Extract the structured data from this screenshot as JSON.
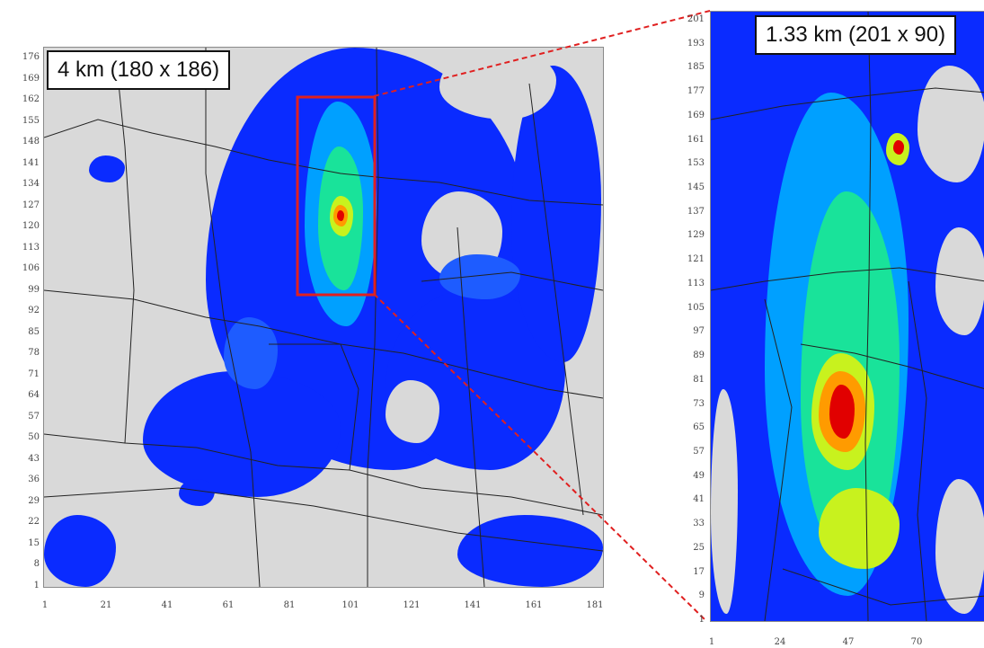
{
  "left_panel": {
    "label": "4 km (180 x 186)",
    "y_ticks": [
      "176",
      "169",
      "162",
      "155",
      "148",
      "141",
      "134",
      "127",
      "120",
      "113",
      "106",
      "99",
      "92",
      "85",
      "78",
      "71",
      "64",
      "57",
      "50",
      "43",
      "36",
      "29",
      "22",
      "15",
      "8",
      "1"
    ],
    "x_ticks": [
      "1",
      "21",
      "41",
      "61",
      "81",
      "101",
      "121",
      "141",
      "161",
      "181"
    ]
  },
  "right_panel": {
    "label": "1.33 km (201 x 90)",
    "y_ticks": [
      "201",
      "193",
      "185",
      "177",
      "169",
      "161",
      "153",
      "145",
      "137",
      "129",
      "121",
      "113",
      "105",
      "97",
      "89",
      "81",
      "73",
      "65",
      "57",
      "49",
      "41",
      "33",
      "25",
      "17",
      "9",
      "1"
    ],
    "x_ticks": [
      "1",
      "24",
      "47",
      "70"
    ]
  },
  "colors": {
    "background": "#d9d9d9",
    "low": "#0a2bff",
    "mid_low": "#00a0ff",
    "mid": "#19e39a",
    "mid_high": "#c8f21e",
    "high": "#ff9b00",
    "peak": "#e10000",
    "zoom_box": "#e02020",
    "borders": "#222222"
  }
}
